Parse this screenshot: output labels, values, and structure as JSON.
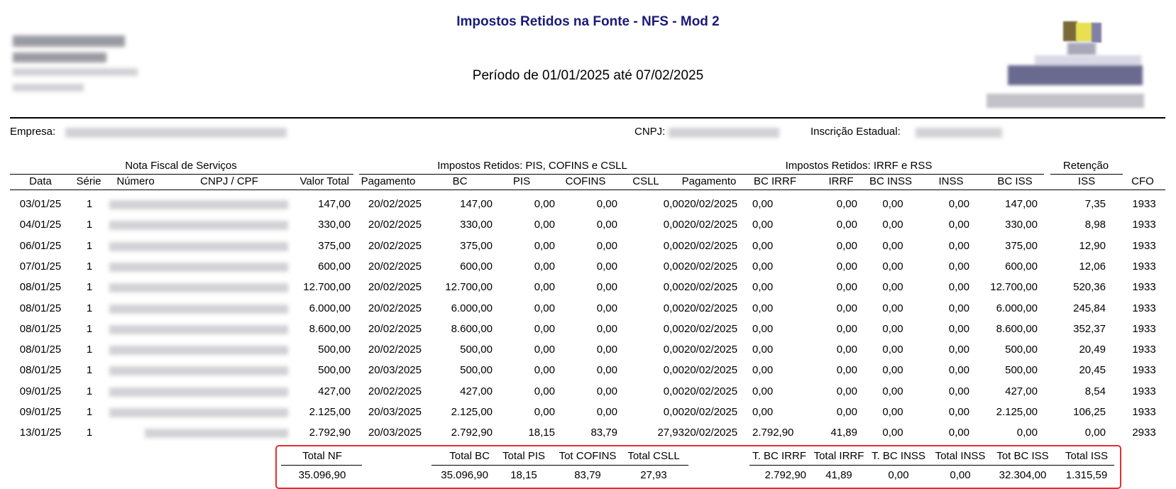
{
  "report": {
    "title": "Impostos Retidos na Fonte - NFS - Mod 2",
    "period": "Período de 01/01/2025 até 07/02/2025"
  },
  "company": {
    "empresa_label": "Empresa:",
    "cnpj_label": "CNPJ:",
    "ie_label": "Inscrição Estadual:"
  },
  "groups": {
    "nota": "Nota Fiscal de Serviços",
    "pis": "Impostos Retidos: PIS, COFINS e CSLL",
    "irrf": "Impostos Retidos: IRRF e RSS",
    "retencao": "Retenção"
  },
  "columns": {
    "data": "Data",
    "serie": "Série",
    "numero": "Número",
    "cnpj": "CNPJ / CPF",
    "valor_total": "Valor Total",
    "pagamento1": "Pagamento",
    "bc": "BC",
    "pis": "PIS",
    "cofins": "COFINS",
    "csll": "CSLL",
    "pagamento2": "Pagamento",
    "bc_irrf": "BC IRRF",
    "irrf": "IRRF",
    "bc_inss": "BC INSS",
    "inss": "INSS",
    "bc_iss": "BC ISS",
    "iss": "ISS",
    "cfo": "CFO"
  },
  "rows": [
    {
      "data": "03/01/25",
      "serie": "1",
      "valor": "147,00",
      "pag1": "20/02/2025",
      "bc": "147,00",
      "pis": "0,00",
      "cofins": "0,00",
      "csll": "0,00",
      "pag2": "20/02/2025",
      "bcirrf": "0,00",
      "irrf": "0,00",
      "bcinss": "0,00",
      "inss": "0,00",
      "bciss": "147,00",
      "iss": "7,35",
      "cfo": "1933"
    },
    {
      "data": "04/01/25",
      "serie": "1",
      "valor": "330,00",
      "pag1": "20/02/2025",
      "bc": "330,00",
      "pis": "0,00",
      "cofins": "0,00",
      "csll": "0,00",
      "pag2": "20/02/2025",
      "bcirrf": "0,00",
      "irrf": "0,00",
      "bcinss": "0,00",
      "inss": "0,00",
      "bciss": "330,00",
      "iss": "8,98",
      "cfo": "1933"
    },
    {
      "data": "06/01/25",
      "serie": "1",
      "valor": "375,00",
      "pag1": "20/02/2025",
      "bc": "375,00",
      "pis": "0,00",
      "cofins": "0,00",
      "csll": "0,00",
      "pag2": "20/02/2025",
      "bcirrf": "0,00",
      "irrf": "0,00",
      "bcinss": "0,00",
      "inss": "0,00",
      "bciss": "375,00",
      "iss": "12,90",
      "cfo": "1933"
    },
    {
      "data": "07/01/25",
      "serie": "1",
      "valor": "600,00",
      "pag1": "20/02/2025",
      "bc": "600,00",
      "pis": "0,00",
      "cofins": "0,00",
      "csll": "0,00",
      "pag2": "20/02/2025",
      "bcirrf": "0,00",
      "irrf": "0,00",
      "bcinss": "0,00",
      "inss": "0,00",
      "bciss": "600,00",
      "iss": "12,06",
      "cfo": "1933"
    },
    {
      "data": "08/01/25",
      "serie": "1",
      "valor": "12.700,00",
      "pag1": "20/02/2025",
      "bc": "12.700,00",
      "pis": "0,00",
      "cofins": "0,00",
      "csll": "0,00",
      "pag2": "20/02/2025",
      "bcirrf": "0,00",
      "irrf": "0,00",
      "bcinss": "0,00",
      "inss": "0,00",
      "bciss": "12.700,00",
      "iss": "520,36",
      "cfo": "1933"
    },
    {
      "data": "08/01/25",
      "serie": "1",
      "valor": "6.000,00",
      "pag1": "20/02/2025",
      "bc": "6.000,00",
      "pis": "0,00",
      "cofins": "0,00",
      "csll": "0,00",
      "pag2": "20/02/2025",
      "bcirrf": "0,00",
      "irrf": "0,00",
      "bcinss": "0,00",
      "inss": "0,00",
      "bciss": "6.000,00",
      "iss": "245,84",
      "cfo": "1933"
    },
    {
      "data": "08/01/25",
      "serie": "1",
      "valor": "8.600,00",
      "pag1": "20/02/2025",
      "bc": "8.600,00",
      "pis": "0,00",
      "cofins": "0,00",
      "csll": "0,00",
      "pag2": "20/02/2025",
      "bcirrf": "0,00",
      "irrf": "0,00",
      "bcinss": "0,00",
      "inss": "0,00",
      "bciss": "8.600,00",
      "iss": "352,37",
      "cfo": "1933"
    },
    {
      "data": "08/01/25",
      "serie": "1",
      "valor": "500,00",
      "pag1": "20/02/2025",
      "bc": "500,00",
      "pis": "0,00",
      "cofins": "0,00",
      "csll": "0,00",
      "pag2": "20/02/2025",
      "bcirrf": "0,00",
      "irrf": "0,00",
      "bcinss": "0,00",
      "inss": "0,00",
      "bciss": "500,00",
      "iss": "20,49",
      "cfo": "1933"
    },
    {
      "data": "08/01/25",
      "serie": "1",
      "valor": "500,00",
      "pag1": "20/03/2025",
      "bc": "500,00",
      "pis": "0,00",
      "cofins": "0,00",
      "csll": "0,00",
      "pag2": "20/02/2025",
      "bcirrf": "0,00",
      "irrf": "0,00",
      "bcinss": "0,00",
      "inss": "0,00",
      "bciss": "500,00",
      "iss": "20,45",
      "cfo": "1933"
    },
    {
      "data": "09/01/25",
      "serie": "1",
      "valor": "427,00",
      "pag1": "20/02/2025",
      "bc": "427,00",
      "pis": "0,00",
      "cofins": "0,00",
      "csll": "0,00",
      "pag2": "20/02/2025",
      "bcirrf": "0,00",
      "irrf": "0,00",
      "bcinss": "0,00",
      "inss": "0,00",
      "bciss": "427,00",
      "iss": "8,54",
      "cfo": "1933"
    },
    {
      "data": "09/01/25",
      "serie": "1",
      "valor": "2.125,00",
      "pag1": "20/03/2025",
      "bc": "2.125,00",
      "pis": "0,00",
      "cofins": "0,00",
      "csll": "0,00",
      "pag2": "20/02/2025",
      "bcirrf": "0,00",
      "irrf": "0,00",
      "bcinss": "0,00",
      "inss": "0,00",
      "bciss": "2.125,00",
      "iss": "106,25",
      "cfo": "1933"
    },
    {
      "data": "13/01/25",
      "serie": "1",
      "valor": "2.792,90",
      "pag1": "20/03/2025",
      "bc": "2.792,90",
      "pis": "18,15",
      "cofins": "83,79",
      "csll": "27,93",
      "pag2": "20/02/2025",
      "bcirrf": "2.792,90",
      "irrf": "41,89",
      "bcinss": "0,00",
      "inss": "0,00",
      "bciss": "0,00",
      "iss": "0,00",
      "cfo": "2933"
    }
  ],
  "totals": {
    "labels": {
      "total_nf": "Total NF",
      "total_bc": "Total BC",
      "total_pis": "Total PIS",
      "tot_cofins": "Tot COFINS",
      "total_csll": "Total CSLL",
      "t_bc_irrf": "T. BC IRRF",
      "total_irrf": "Total IRRF",
      "t_bc_inss": "T. BC INSS",
      "total_inss": "Total INSS",
      "tot_bc_iss": "Tot BC ISS",
      "total_iss": "Total ISS"
    },
    "values": {
      "total_nf": "35.096,90",
      "total_bc": "35.096,90",
      "total_pis": "18,15",
      "tot_cofins": "83,79",
      "total_csll": "27,93",
      "t_bc_irrf": "2.792,90",
      "total_irrf": "41,89",
      "t_bc_inss": "0,00",
      "total_inss": "0,00",
      "tot_bc_iss": "32.304,00",
      "total_iss": "1.315,59"
    }
  },
  "colors": {
    "title": "#1a1a7a",
    "totals_border": "#e03030"
  }
}
